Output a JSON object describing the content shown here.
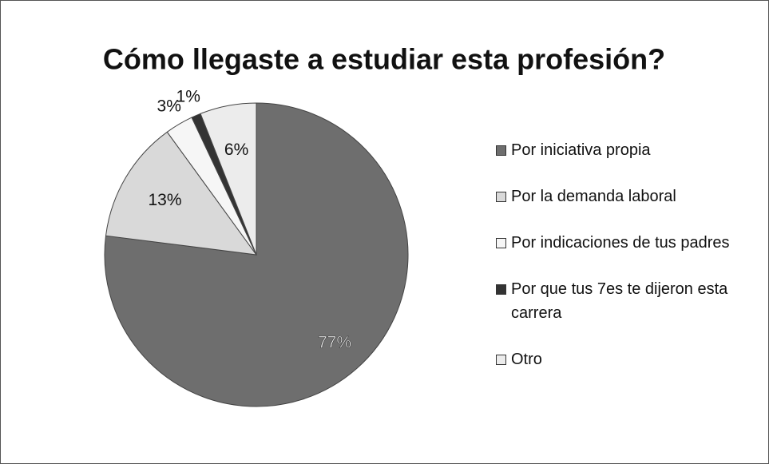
{
  "chart_data": {
    "type": "pie",
    "title": "Cómo llegaste a estudiar esta profesión?",
    "series": [
      {
        "name": "Por iniciativa propia",
        "color": "#6e6e6e",
        "values": [
          77
        ],
        "value_labels": [
          "77%"
        ]
      },
      {
        "name": "Por la demanda laboral",
        "color": "#d9d9d9",
        "values": [
          13
        ],
        "value_labels": [
          "13%"
        ]
      },
      {
        "name": "Por indicaciones de tus padres",
        "color": "#f6f6f6",
        "values": [
          3
        ],
        "value_labels": [
          "3%"
        ]
      },
      {
        "name": "Por que tus 7es te dijeron esta carrera",
        "color": "#333333",
        "values": [
          1
        ],
        "value_labels": [
          "1%"
        ]
      },
      {
        "name": "Otro",
        "color": "#ececec",
        "values": [
          6
        ],
        "value_labels": [
          "6%"
        ]
      }
    ],
    "legend": "right"
  }
}
